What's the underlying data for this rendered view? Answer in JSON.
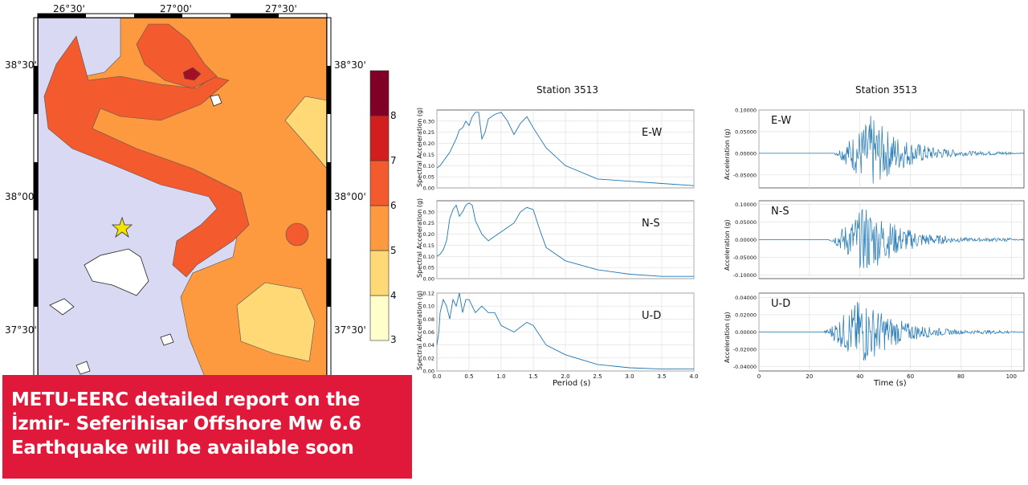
{
  "map": {
    "lon_ticks": [
      "26°30'",
      "27°00'",
      "27°30'"
    ],
    "lat_ticks_left": [
      "38°30'",
      "38°00'",
      "37°30'"
    ],
    "lat_ticks_right": [
      "38°30'",
      "38°00'",
      "37°30'"
    ],
    "colorbar": {
      "labels": [
        "3",
        "4",
        "5",
        "6",
        "7",
        "8"
      ],
      "colors": [
        "#ffffcc",
        "#fed976",
        "#fd9a3f",
        "#f35a2e",
        "#d31e20",
        "#800026"
      ]
    },
    "marker": "star-icon",
    "colors": {
      "sea": "#d9d9f4",
      "land_low": "#fd9a3f",
      "land_mid": "#f35a2e",
      "land_light": "#fed976"
    }
  },
  "banner": {
    "lines": [
      "METU-EERC detailed report on the",
      "İzmir- Seferihisar Offshore Mw 6.6",
      "Earthquake will be available soon"
    ],
    "color": "#e0183a"
  },
  "spectra": {
    "title": "Station 3513",
    "xlabel": "Period (s)",
    "ylabel": "Spectral Acceleration (g)",
    "x_ticks": [
      "0.0",
      "0.5",
      "1.0",
      "1.5",
      "2.0",
      "2.5",
      "3.0",
      "3.5",
      "4.0"
    ],
    "components": [
      "E-W",
      "N-S",
      "U-D"
    ]
  },
  "timeseries": {
    "title": "Station 3513",
    "xlabel": "Time (s)",
    "ylabel": "Acceleration (g)",
    "x_ticks": [
      "0",
      "20",
      "40",
      "60",
      "80",
      "100"
    ],
    "components": [
      "E-W",
      "N-S",
      "U-D"
    ]
  },
  "chart_data": [
    {
      "type": "line",
      "name": "E-W spectrum",
      "x": [
        0.0,
        0.05,
        0.1,
        0.15,
        0.2,
        0.25,
        0.3,
        0.35,
        0.4,
        0.45,
        0.5,
        0.55,
        0.6,
        0.65,
        0.7,
        0.75,
        0.8,
        0.9,
        1.0,
        1.1,
        1.2,
        1.3,
        1.4,
        1.5,
        1.7,
        2.0,
        2.5,
        3.0,
        3.5,
        4.0
      ],
      "y": [
        0.09,
        0.1,
        0.12,
        0.14,
        0.16,
        0.19,
        0.22,
        0.26,
        0.27,
        0.3,
        0.28,
        0.32,
        0.34,
        0.34,
        0.22,
        0.25,
        0.31,
        0.33,
        0.34,
        0.3,
        0.24,
        0.29,
        0.32,
        0.27,
        0.18,
        0.1,
        0.04,
        0.03,
        0.02,
        0.01
      ],
      "xlim": [
        0,
        4
      ],
      "ylim": [
        0,
        0.35
      ],
      "y_ticks": [
        "0.00",
        "0.05",
        "0.10",
        "0.15",
        "0.20",
        "0.25",
        "0.30"
      ]
    },
    {
      "type": "line",
      "name": "N-S spectrum",
      "x": [
        0.0,
        0.05,
        0.1,
        0.15,
        0.2,
        0.25,
        0.3,
        0.35,
        0.4,
        0.45,
        0.5,
        0.55,
        0.6,
        0.7,
        0.8,
        0.9,
        1.0,
        1.1,
        1.2,
        1.3,
        1.4,
        1.5,
        1.6,
        1.7,
        2.0,
        2.5,
        3.0,
        3.5,
        4.0
      ],
      "y": [
        0.1,
        0.11,
        0.13,
        0.17,
        0.27,
        0.31,
        0.33,
        0.28,
        0.3,
        0.33,
        0.34,
        0.33,
        0.26,
        0.2,
        0.17,
        0.19,
        0.21,
        0.23,
        0.25,
        0.3,
        0.32,
        0.31,
        0.22,
        0.14,
        0.08,
        0.04,
        0.02,
        0.01,
        0.01
      ],
      "xlim": [
        0,
        4
      ],
      "ylim": [
        0,
        0.35
      ],
      "y_ticks": [
        "0.00",
        "0.05",
        "0.10",
        "0.15",
        "0.20",
        "0.25",
        "0.30"
      ]
    },
    {
      "type": "line",
      "name": "U-D spectrum",
      "x": [
        0.0,
        0.03,
        0.05,
        0.1,
        0.15,
        0.2,
        0.25,
        0.3,
        0.35,
        0.4,
        0.45,
        0.5,
        0.55,
        0.6,
        0.7,
        0.8,
        0.9,
        1.0,
        1.2,
        1.4,
        1.5,
        1.7,
        2.0,
        2.5,
        3.0,
        3.5,
        4.0
      ],
      "y": [
        0.04,
        0.06,
        0.09,
        0.11,
        0.1,
        0.08,
        0.11,
        0.1,
        0.12,
        0.09,
        0.11,
        0.11,
        0.1,
        0.09,
        0.1,
        0.09,
        0.09,
        0.07,
        0.06,
        0.075,
        0.07,
        0.04,
        0.025,
        0.01,
        0.005,
        0.003,
        0.003
      ],
      "xlim": [
        0,
        4
      ],
      "ylim": [
        0,
        0.12
      ],
      "y_ticks": [
        "0.00",
        "0.02",
        "0.04",
        "0.06",
        "0.08",
        "0.10",
        "0.12"
      ]
    },
    {
      "type": "line",
      "name": "E-W acceleration",
      "xlim": [
        0,
        105
      ],
      "ylim": [
        -0.08,
        0.1
      ],
      "peak": 0.09,
      "strong_motion_window": [
        30,
        65
      ],
      "y_ticks": [
        "-0.05000",
        "0.00000",
        "0.05000",
        "0.10000"
      ]
    },
    {
      "type": "line",
      "name": "N-S acceleration",
      "xlim": [
        0,
        105
      ],
      "ylim": [
        -0.11,
        0.11
      ],
      "peak": 0.105,
      "strong_motion_window": [
        28,
        65
      ],
      "y_ticks": [
        "-0.10000",
        "-0.05000",
        "0.00000",
        "0.05000",
        "0.10000"
      ]
    },
    {
      "type": "line",
      "name": "U-D acceleration",
      "xlim": [
        0,
        105
      ],
      "ylim": [
        -0.045,
        0.045
      ],
      "peak": 0.043,
      "strong_motion_window": [
        26,
        70
      ],
      "y_ticks": [
        "-0.04000",
        "-0.02000",
        "0.00000",
        "0.02000",
        "0.04000"
      ]
    }
  ]
}
